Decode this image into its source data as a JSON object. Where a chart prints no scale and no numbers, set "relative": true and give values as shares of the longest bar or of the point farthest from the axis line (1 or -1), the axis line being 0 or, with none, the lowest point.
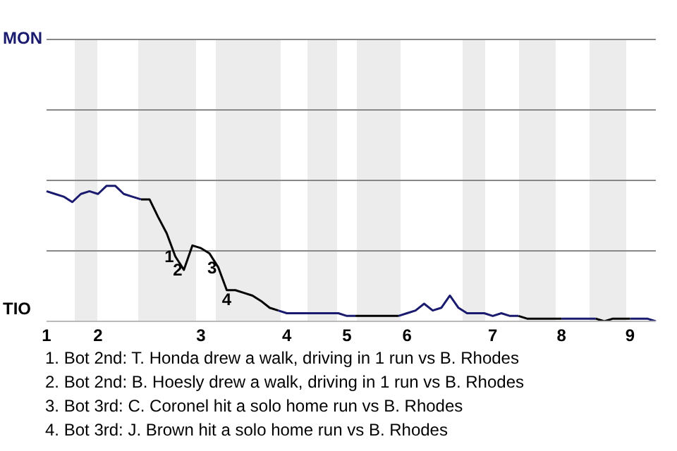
{
  "chart_data": {
    "type": "line",
    "relative": true,
    "categories": [
      "1",
      null,
      null,
      null,
      null,
      null,
      "2",
      null,
      null,
      null,
      null,
      null,
      null,
      null,
      null,
      null,
      null,
      null,
      "3",
      null,
      null,
      null,
      null,
      null,
      null,
      null,
      null,
      null,
      "4",
      null,
      null,
      null,
      null,
      null,
      null,
      "5",
      null,
      null,
      null,
      null,
      null,
      null,
      "6",
      null,
      null,
      null,
      null,
      null,
      null,
      null,
      null,
      null,
      "7",
      null,
      null,
      null,
      null,
      null,
      null,
      null,
      "8",
      null,
      null,
      null,
      null,
      null,
      null,
      null,
      "9",
      null,
      null,
      null
    ],
    "series": [
      {
        "color": "#1a1a6e",
        "values": [
          0.96,
          0.94,
          0.92,
          0.88,
          0.94,
          0.96,
          0.94,
          1,
          1,
          0.94,
          0.92,
          0.9,
          null,
          null,
          null,
          null,
          null,
          null,
          null,
          null,
          null,
          null,
          null,
          null,
          null,
          null,
          null,
          0.08,
          0.06,
          0.06,
          0.06,
          0.06,
          0.06,
          0.06,
          0.06,
          0.04,
          0.04,
          null,
          null,
          null,
          null,
          0.04,
          0.06,
          0.08,
          0.13,
          0.08,
          0.1,
          0.19,
          0.1,
          0.06,
          0.06,
          0.06,
          0.04,
          0.06,
          0.04,
          0.04,
          null,
          null,
          null,
          null,
          0.02,
          0.02,
          0.02,
          0.02,
          0.02,
          null,
          null,
          null,
          0.02,
          0.02,
          0.02,
          0
        ]
      },
      {
        "color": "#000000",
        "values": [
          null,
          null,
          null,
          null,
          null,
          null,
          null,
          null,
          null,
          null,
          null,
          0.9,
          0.9,
          0.77,
          0.65,
          0.48,
          0.38,
          0.56,
          0.54,
          0.5,
          0.4,
          0.23,
          0.23,
          0.21,
          0.19,
          0.15,
          0.1,
          0.08,
          null,
          null,
          null,
          null,
          null,
          null,
          null,
          null,
          0.04,
          0.04,
          0.04,
          0.04,
          0.04,
          0.04,
          null,
          null,
          null,
          null,
          null,
          null,
          null,
          null,
          null,
          null,
          null,
          null,
          null,
          0.04,
          0.02,
          0.02,
          0.02,
          0.02,
          0.02,
          null,
          null,
          null,
          0.02,
          0,
          0.02,
          0.02,
          0.02,
          null,
          null,
          null
        ]
      }
    ],
    "ref_lines": [
      {
        "axis": "y",
        "value": 0.52,
        "color": "#888888"
      },
      {
        "axis": "y",
        "value": 1.04,
        "color": "#888888"
      },
      {
        "axis": "y",
        "value": 1.56,
        "color": "#888888"
      },
      {
        "axis": "y",
        "value": 2.08,
        "color": "#888888"
      }
    ],
    "annotations": [
      "MON",
      "TIO",
      {
        "text": "1",
        "y": 0.48
      },
      {
        "text": "2",
        "y": 0.38
      },
      {
        "text": "3",
        "y": 0.4
      },
      {
        "text": "4",
        "y": 0.23
      },
      "1. Bot 2nd: T. Honda drew a walk, driving in 1 run vs B. Rhodes",
      "2. Bot 2nd: B. Hoesly drew a walk, driving in 1 run vs B. Rhodes",
      "3. Bot 3rd: C. Coronel hit a solo home run vs B. Rhodes",
      "4. Bot 3rd: J. Brown hit a solo home run vs B. Rhodes"
    ]
  }
}
